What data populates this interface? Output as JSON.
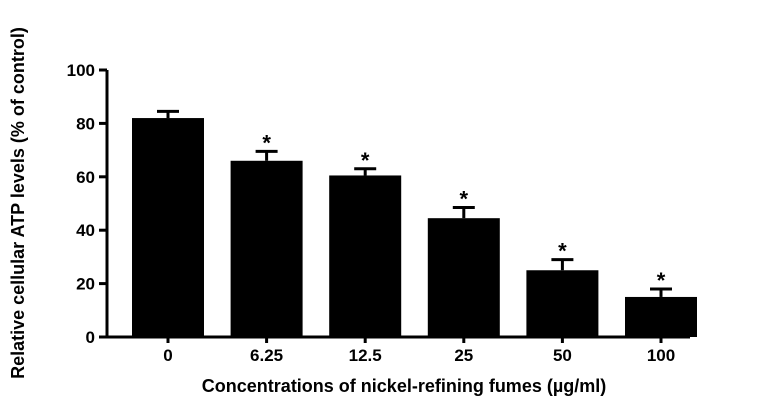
{
  "chart_data": {
    "type": "bar",
    "categories": [
      "0",
      "6.25",
      "12.5",
      "25",
      "50",
      "100"
    ],
    "values": [
      82,
      66,
      60.5,
      44.5,
      25,
      15
    ],
    "errors": [
      2.5,
      3.5,
      2.5,
      4,
      4,
      3
    ],
    "significance": [
      "",
      "*",
      "*",
      "*",
      "*",
      "*"
    ],
    "xlabel": "Concentrations of nickel-refining fumes (µg/ml)",
    "ylabel": "Relative cellular ATP levels (% of control)",
    "ylim": [
      0,
      100
    ],
    "yticks": [
      0,
      20,
      40,
      60,
      80,
      100
    ],
    "grid": false,
    "bar_color": "#000000",
    "error_bars": "upper, capped"
  }
}
